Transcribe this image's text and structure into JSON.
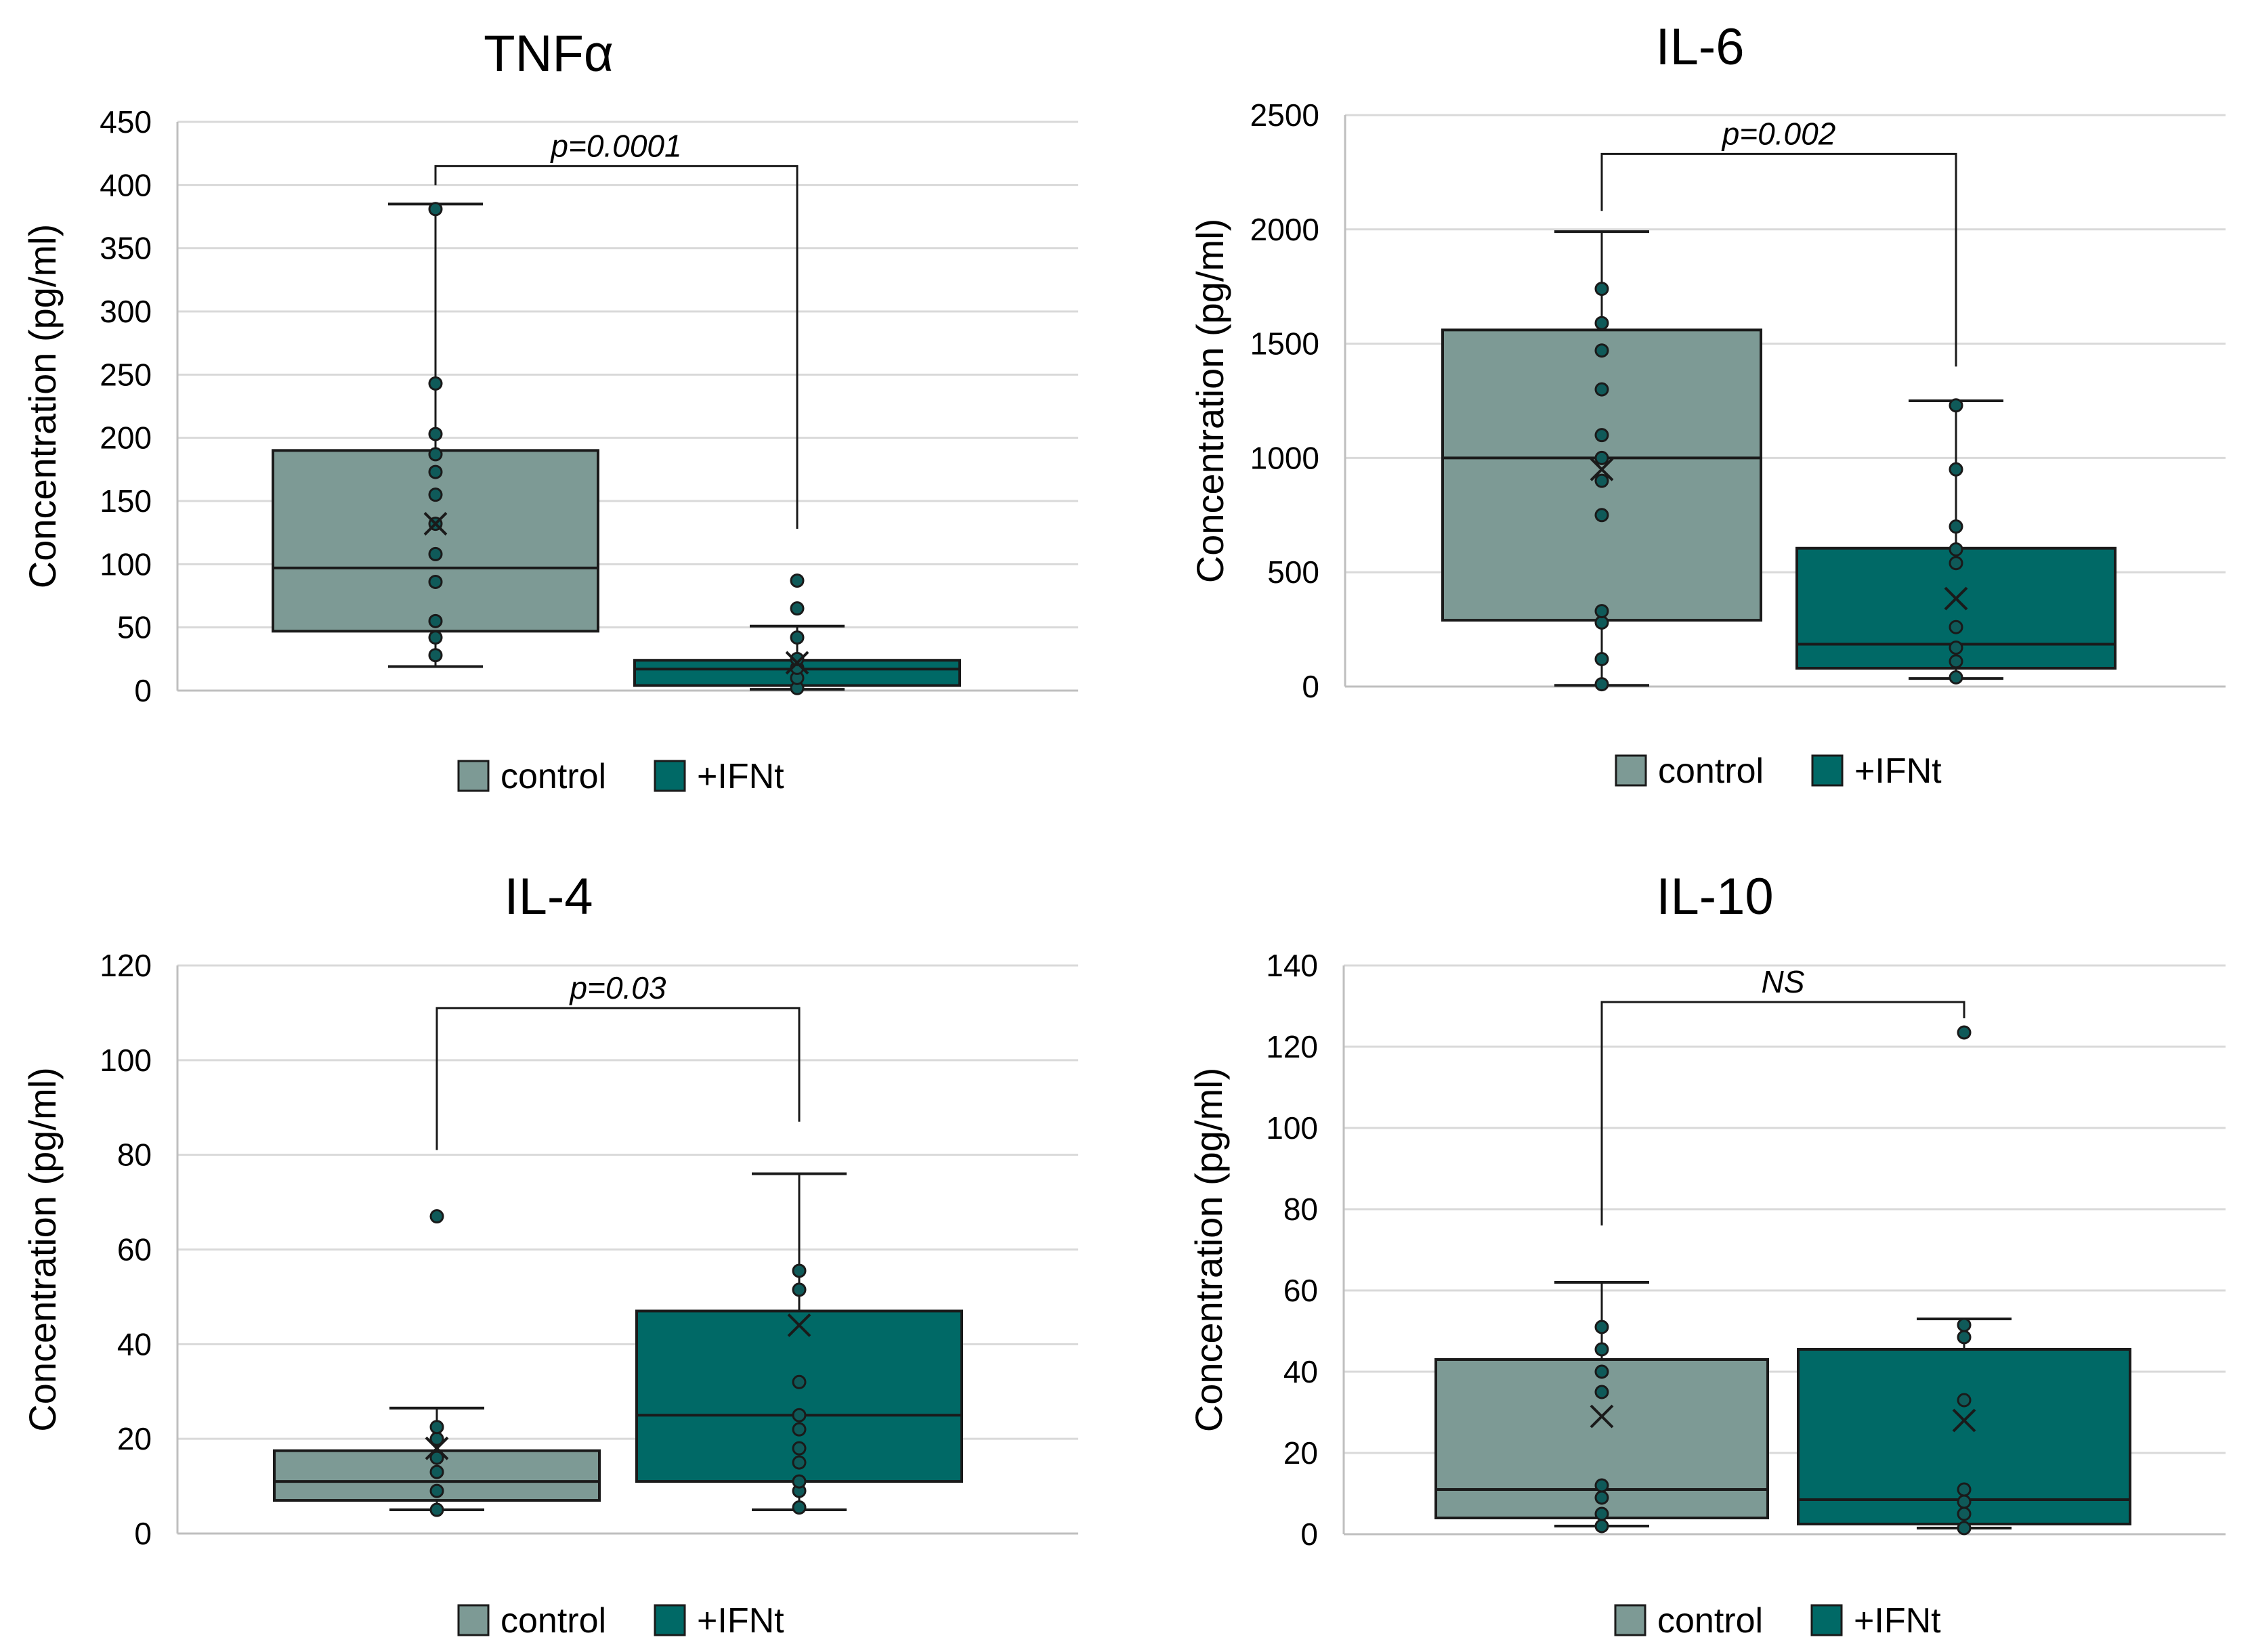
{
  "colors": {
    "control": "#7d9a95",
    "ifnt": "#006966",
    "point": "#0f5a59",
    "grid": "#d9d9d9",
    "axis": "#bfbfbf",
    "stroke": "#1a1a1a"
  },
  "chart_data": [
    {
      "type": "boxplot",
      "title": "TNFα",
      "ylabel": "Concentration (pg/ml)",
      "xlabel": "",
      "ylim": [
        0,
        450
      ],
      "yticks": [
        "0",
        "50",
        "100",
        "150",
        "200",
        "250",
        "300",
        "350",
        "400",
        "450"
      ],
      "legend": [
        "control",
        "+IFNt"
      ],
      "comparison": {
        "label": "p=0.0001",
        "bracket_y": 415,
        "left_end": 400,
        "right_end": 128
      },
      "series": [
        {
          "name": "control",
          "min": 19,
          "q1": 47,
          "median": 97,
          "q3": 190,
          "max": 385,
          "mean": 132,
          "points": [
            28,
            42,
            55,
            86,
            108,
            132,
            155,
            173,
            187,
            203,
            243,
            381
          ]
        },
        {
          "name": "+IFNt",
          "min": 1,
          "q1": 4,
          "median": 17,
          "q3": 24,
          "max": 51,
          "mean": 22,
          "points": [
            2,
            10,
            18,
            25,
            42,
            65,
            87
          ]
        }
      ]
    },
    {
      "type": "boxplot",
      "title": "IL-6",
      "ylabel": "Concentration (pg/ml)",
      "xlabel": "",
      "ylim": [
        0,
        2500
      ],
      "yticks": [
        "0",
        "500",
        "1000",
        "1500",
        "2000",
        "2500"
      ],
      "legend": [
        "control",
        "+IFNt"
      ],
      "comparison": {
        "label": "p=0.002",
        "bracket_y": 2330,
        "left_end": 2080,
        "right_end": 1400
      },
      "series": [
        {
          "name": "control",
          "min": 5,
          "q1": 290,
          "median": 1000,
          "q3": 1560,
          "max": 1990,
          "mean": 950,
          "points": [
            10,
            120,
            280,
            330,
            750,
            900,
            1000,
            1100,
            1300,
            1470,
            1590,
            1740
          ]
        },
        {
          "name": "+IFNt",
          "min": 35,
          "q1": 80,
          "median": 185,
          "q3": 605,
          "max": 1250,
          "mean": 385,
          "points": [
            40,
            110,
            170,
            260,
            540,
            600,
            700,
            950,
            1230
          ]
        }
      ]
    },
    {
      "type": "boxplot",
      "title": "IL-4",
      "ylabel": "Concentration (pg/ml)",
      "xlabel": "",
      "ylim": [
        0,
        120
      ],
      "yticks": [
        "0",
        "20",
        "40",
        "60",
        "80",
        "100",
        "120"
      ],
      "legend": [
        "control",
        "+IFNt"
      ],
      "comparison": {
        "label": "p=0.03",
        "bracket_y": 111,
        "left_end": 81,
        "right_end": 87
      },
      "series": [
        {
          "name": "control",
          "min": 5,
          "q1": 7,
          "median": 11,
          "q3": 17.5,
          "max": 26.5,
          "mean": 18,
          "points": [
            5,
            9,
            13,
            16,
            20,
            22.5,
            67
          ]
        },
        {
          "name": "+IFNt",
          "min": 5,
          "q1": 11,
          "median": 25,
          "q3": 47,
          "max": 76,
          "mean": 44,
          "points": [
            5.5,
            9,
            11,
            15,
            18,
            22,
            25,
            32,
            51.5,
            55.5
          ]
        }
      ]
    },
    {
      "type": "boxplot",
      "title": "IL-10",
      "ylabel": "Concentration (pg/ml)",
      "xlabel": "",
      "ylim": [
        0,
        140
      ],
      "yticks": [
        "0",
        "20",
        "40",
        "60",
        "80",
        "100",
        "120",
        "140"
      ],
      "legend": [
        "control",
        "+IFNt"
      ],
      "comparison": {
        "label": "NS",
        "bracket_y": 131,
        "left_end": 76,
        "right_end": 127
      },
      "series": [
        {
          "name": "control",
          "min": 2,
          "q1": 4,
          "median": 11,
          "q3": 43,
          "max": 62,
          "mean": 29,
          "points": [
            2,
            5,
            9,
            12,
            35,
            40,
            45.5,
            51
          ]
        },
        {
          "name": "+IFNt",
          "min": 1.5,
          "q1": 2.5,
          "median": 8.5,
          "q3": 45.5,
          "max": 53,
          "mean": 28,
          "points": [
            1.5,
            5,
            8,
            11,
            33,
            48.5,
            51.5,
            123.5
          ]
        }
      ]
    }
  ]
}
